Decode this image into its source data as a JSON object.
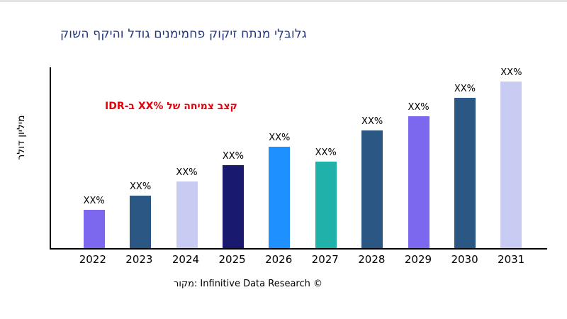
{
  "colors": {
    "title": "#24357c",
    "annotation": "#e8000b",
    "axis": "#000000",
    "text": "#000000",
    "background": "#ffffff"
  },
  "chart_data": {
    "type": "bar",
    "title": "קושה ףקיהו לדוג םינמימחפ קוקיז חתנמ ילְבּולג",
    "annotation": "IDR-ב XX% לש החימצ בצק",
    "ylabel": "רלוד ןוילימ",
    "xlabel": "",
    "source": "רוקמ: Infinitive Data Research ©",
    "categories": [
      "2022",
      "2023",
      "2024",
      "2025",
      "2026",
      "2027",
      "2028",
      "2029",
      "2030",
      "2031"
    ],
    "values": [
      21,
      29,
      37,
      46,
      56,
      48,
      65,
      73,
      83,
      92
    ],
    "bar_labels": [
      "XX%",
      "XX%",
      "XX%",
      "XX%",
      "XX%",
      "XX%",
      "XX%",
      "XX%",
      "XX%",
      "XX%"
    ],
    "bar_colors": [
      "#7b68ee",
      "#2a5784",
      "#c9ccf2",
      "#191970",
      "#1e90ff",
      "#20b2aa",
      "#2a5784",
      "#7b68ee",
      "#2a5784",
      "#c9ccf2"
    ],
    "ylim": [
      0,
      100
    ],
    "grid": false,
    "legend": false
  }
}
